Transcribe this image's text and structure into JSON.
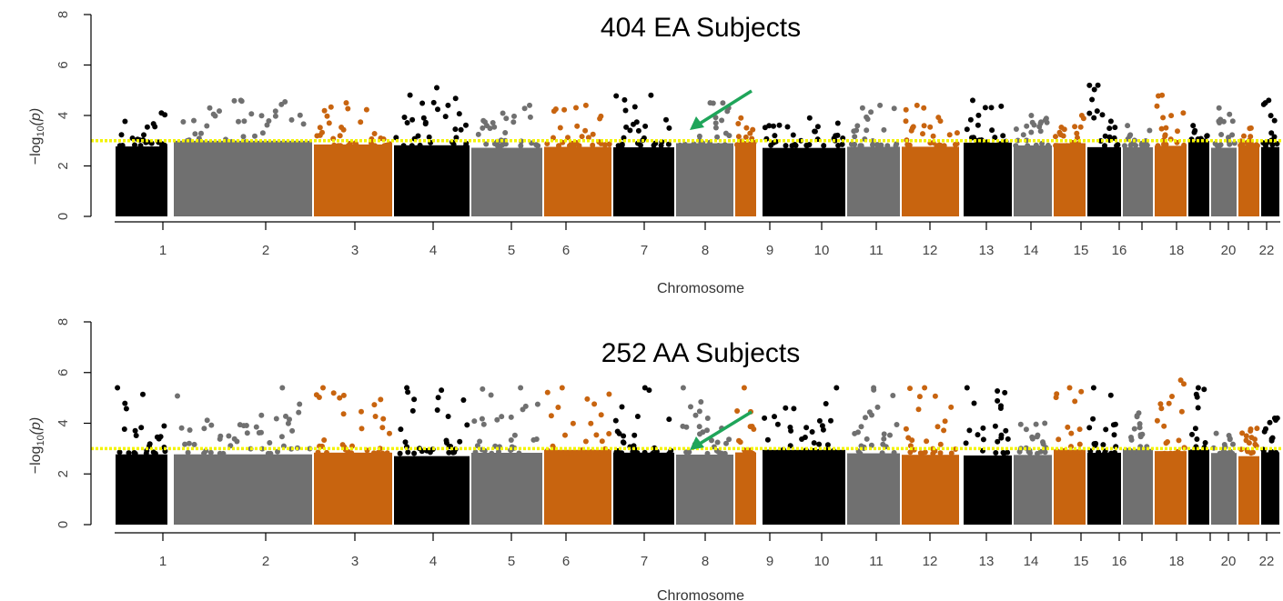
{
  "chart_data": [
    {
      "type": "scatter",
      "subtype": "manhattan",
      "title": "404 EA Subjects",
      "xlabel": "Chromosome",
      "ylabel": "-log10(p)",
      "ylim": [
        0,
        8
      ],
      "yticks": [
        0,
        2,
        4,
        6,
        8
      ],
      "threshold": 3,
      "chromosomes": [
        "1",
        "2",
        "3",
        "4",
        "5",
        "6",
        "7",
        "8",
        "9",
        "10",
        "11",
        "12",
        "13",
        "14",
        "15",
        "16",
        "17",
        "18",
        "19",
        "20",
        "21",
        "22"
      ],
      "xtick_labels": [
        "1",
        "2",
        "3",
        "4",
        "5",
        "6",
        "7",
        "8",
        "9",
        "10",
        "11",
        "12",
        "13",
        "14",
        "15",
        "16",
        "",
        "18",
        "",
        "20",
        "",
        "22"
      ],
      "peak_neglog10p": [
        4.1,
        4.6,
        4.5,
        5.1,
        4.4,
        4.4,
        4.8,
        4.5,
        3.9,
        3.9,
        4.4,
        4.4,
        4.6,
        4.0,
        4.0,
        5.2,
        3.6,
        4.8,
        3.6,
        4.3,
        3.5,
        4.6
      ],
      "annotation": "arrow pointing to chromosome 8 signal near threshold"
    },
    {
      "type": "scatter",
      "subtype": "manhattan",
      "title": "252 AA Subjects",
      "xlabel": "Chromosome",
      "ylabel": "-log10(p)",
      "ylim": [
        0,
        8
      ],
      "yticks": [
        0,
        2,
        4,
        6,
        8
      ],
      "threshold": 3,
      "chromosomes": [
        "1",
        "2",
        "3",
        "4",
        "5",
        "6",
        "7",
        "8",
        "9",
        "10",
        "11",
        "12",
        "13",
        "14",
        "15",
        "16",
        "17",
        "18",
        "19",
        "20",
        "21",
        "22"
      ],
      "xtick_labels": [
        "1",
        "2",
        "3",
        "4",
        "5",
        "6",
        "7",
        "8",
        "9",
        "10",
        "11",
        "12",
        "13",
        "14",
        "15",
        "16",
        "",
        "18",
        "",
        "20",
        "",
        "22"
      ],
      "peak_neglog10p": [
        5.4,
        5.4,
        5.4,
        5.4,
        5.4,
        5.4,
        5.4,
        5.4,
        5.4,
        5.4,
        5.4,
        5.4,
        5.4,
        4.0,
        5.4,
        5.4,
        4.4,
        5.7,
        5.4,
        3.6,
        3.8,
        4.2
      ],
      "annotation": "arrow pointing to chromosome 8 signal near threshold"
    }
  ],
  "colors": {
    "chrom_cycle": [
      "#000000",
      "#707070",
      "#c8640f"
    ],
    "threshold_line": "#f3f300",
    "arrow": "#1fa55a",
    "axis": "#000000",
    "axis_text": "#444444"
  },
  "panels": [
    {
      "title": "404 EA Subjects",
      "xlabel": "Chromosome",
      "ylabel_main": "−log",
      "ylabel_sub": "10",
      "ylabel_tail": "(p)"
    },
    {
      "title": "252 AA Subjects",
      "xlabel": "Chromosome",
      "ylabel_main": "−log",
      "ylabel_sub": "10",
      "ylabel_tail": "(p)"
    }
  ]
}
